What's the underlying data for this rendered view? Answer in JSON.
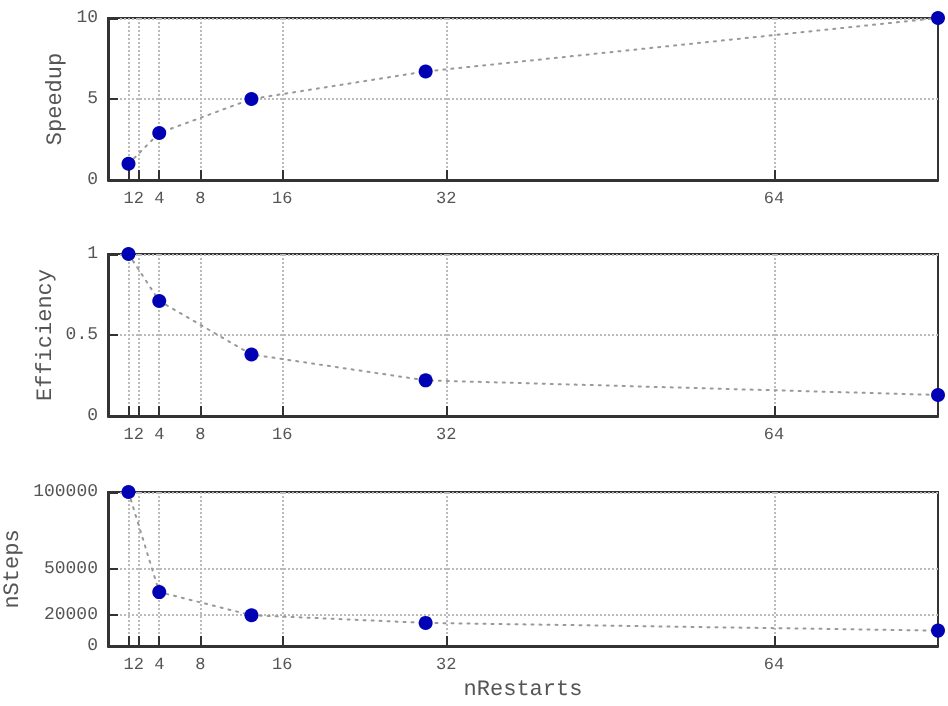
{
  "chart_data": [
    {
      "type": "line",
      "ylabel": "Speedup",
      "x": [
        1,
        4,
        13,
        30,
        80
      ],
      "series": [
        {
          "color": "#0000b4",
          "values": [
            1,
            2.9,
            5,
            6.7,
            10
          ]
        }
      ],
      "xlim": [
        -1,
        80
      ],
      "xticks": [
        1,
        2,
        4,
        8,
        16,
        32,
        64
      ],
      "ylim": [
        0,
        10
      ],
      "yticks": [
        0,
        5,
        10
      ],
      "grid": true,
      "marker": "circle",
      "line_style": "dotted"
    },
    {
      "type": "line",
      "ylabel": "Efficiency",
      "x": [
        1,
        4,
        13,
        30,
        80
      ],
      "series": [
        {
          "color": "#0000b4",
          "values": [
            1,
            0.71,
            0.38,
            0.22,
            0.13
          ]
        }
      ],
      "xlim": [
        -1,
        80
      ],
      "xticks": [
        1,
        2,
        4,
        8,
        16,
        32,
        64
      ],
      "ylim": [
        0,
        1
      ],
      "yticks": [
        0,
        0.5,
        1
      ],
      "grid": true,
      "marker": "circle",
      "line_style": "dotted"
    },
    {
      "type": "line",
      "xlabel": "nRestarts",
      "ylabel": "nSteps",
      "x": [
        1,
        4,
        13,
        30,
        80
      ],
      "series": [
        {
          "color": "#0000b4",
          "values": [
            100000,
            35000,
            20000,
            15000,
            10000
          ]
        }
      ],
      "xlim": [
        -1,
        80
      ],
      "xticks": [
        1,
        2,
        4,
        8,
        16,
        32,
        64
      ],
      "ylim": [
        0,
        100000
      ],
      "yticks": [
        0,
        20000,
        50000,
        100000
      ],
      "grid": true,
      "marker": "circle",
      "line_style": "dotted"
    }
  ]
}
